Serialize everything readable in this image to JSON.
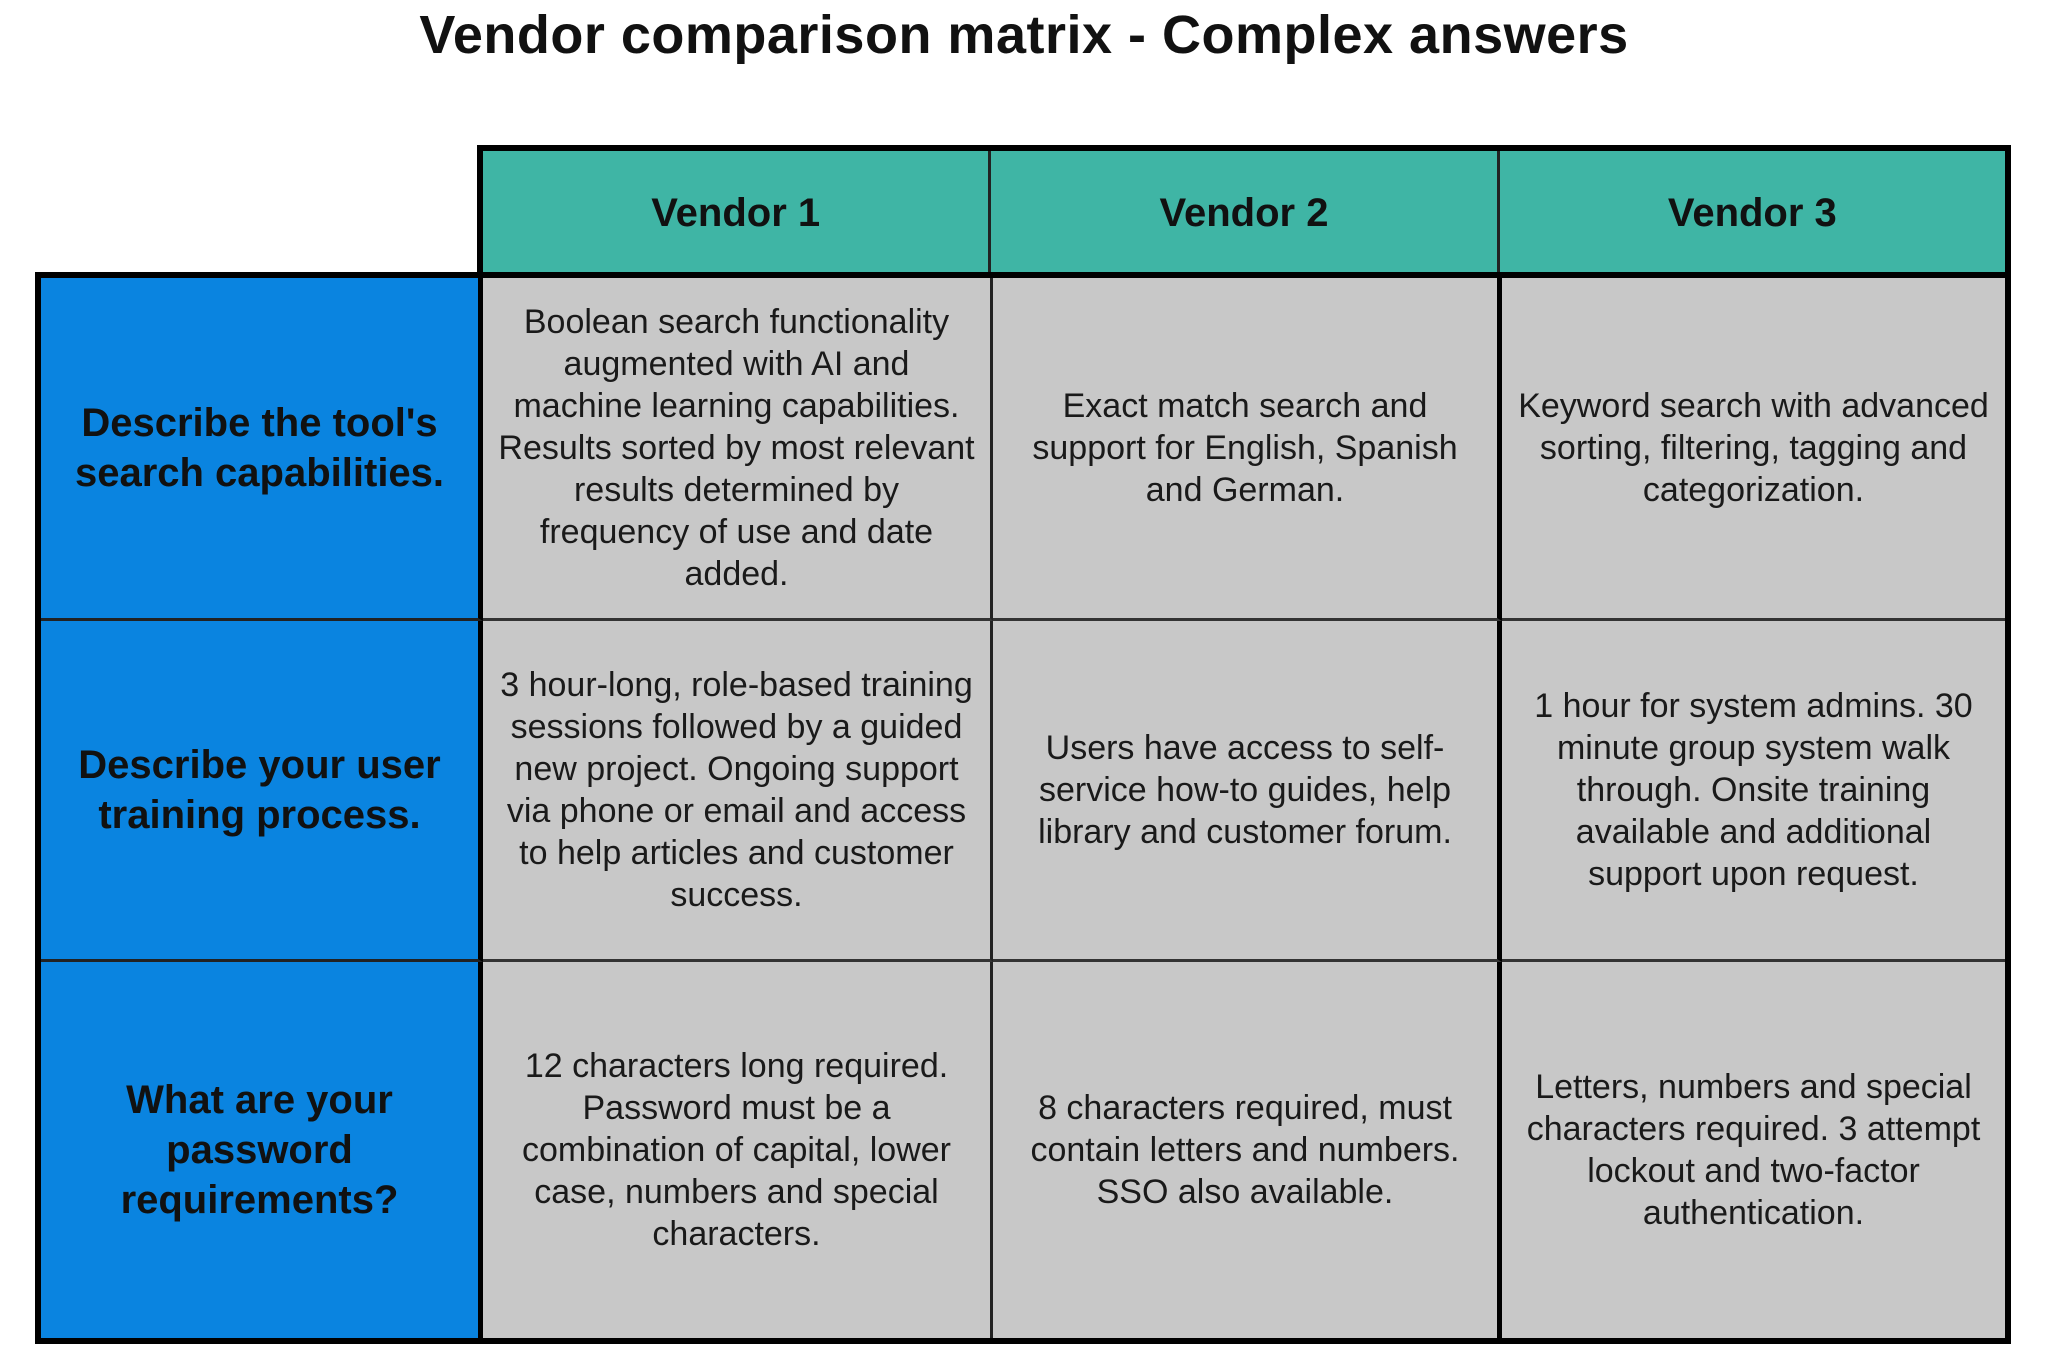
{
  "title": "Vendor comparison matrix - Complex answers",
  "colors": {
    "header": "#3fb5a5",
    "row_label": "#0a84e0",
    "cell": "#c8c8c8"
  },
  "vendors": [
    "Vendor 1",
    "Vendor 2",
    "Vendor 3"
  ],
  "rows": [
    {
      "question": "Describe the tool's search capabilities.",
      "answers": [
        "Boolean search functionality augmented with AI and machine learning capabilities. Results sorted by most relevant results determined by frequency of use and date added.",
        "Exact match search and support for English, Spanish and German.",
        "Keyword search with advanced sorting, filtering, tagging and categorization."
      ]
    },
    {
      "question": "Describe your user training process.",
      "answers": [
        "3 hour-long, role-based training sessions followed by a guided new project. Ongoing support via phone or email and access to help articles and customer success.",
        "Users have access to self-service how-to guides, help library and customer forum.",
        "1 hour for system admins. 30 minute group system walk through. Onsite training available and additional support upon request."
      ]
    },
    {
      "question": "What are your password requirements?",
      "answers": [
        "12 characters long required. Password must be a combination of capital, lower case, numbers and special characters.",
        "8 characters required, must contain letters and numbers. SSO also available.",
        "Letters, numbers and special characters required. 3 attempt lockout and two-factor authentication."
      ]
    }
  ]
}
